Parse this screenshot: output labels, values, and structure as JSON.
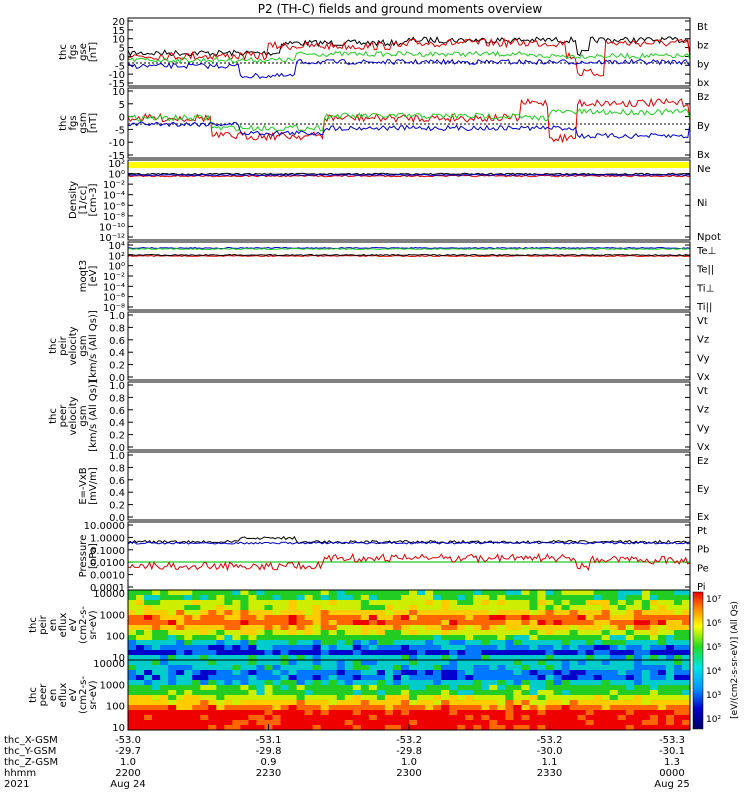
{
  "title": "P2 (TH-C) fields and ground moments overview",
  "colors": {
    "black": "#000000",
    "red": "#dd0000",
    "green": "#22cc22",
    "blue": "#0000cc",
    "yellow": "#ffff00"
  },
  "chart_data": [
    {
      "panel": "fgs-gse",
      "type": "line",
      "ylabel_lines": [
        "thc",
        "fgs",
        "gse",
        "[nT]"
      ],
      "yticks": [
        "20",
        "15",
        "10",
        "5",
        "0",
        "-5",
        "-10",
        "-15"
      ],
      "ylim": [
        -15,
        20
      ],
      "legend": [
        "Bt",
        "bz",
        "by",
        "bx"
      ],
      "legend_colors": [
        "#000000",
        "#dd0000",
        "#22cc22",
        "#0000cc"
      ]
    },
    {
      "panel": "fgs-gsm",
      "type": "line",
      "ylabel_lines": [
        "thc",
        "fgs",
        "gsm",
        "[nT]"
      ],
      "yticks": [
        "10",
        "5",
        "0",
        "-5",
        "-10",
        "-15"
      ],
      "ylim": [
        -17,
        12
      ],
      "legend": [
        "Bz",
        "By",
        "Bx"
      ],
      "legend_colors": [
        "#dd0000",
        "#22cc22",
        "#0000cc"
      ]
    },
    {
      "panel": "density",
      "type": "line",
      "ylabel_lines": [
        "Density",
        "[1/cc]",
        "[cm-3]"
      ],
      "yticks": [
        "10²",
        "10⁰",
        "10⁻²",
        "10⁻⁴",
        "10⁻⁶",
        "10⁻⁸",
        "10⁻¹⁰",
        "10⁻¹²"
      ],
      "legend": [
        "Ne",
        "Ni",
        "Npot"
      ],
      "legend_colors": [
        "#dd0000",
        "#000000",
        "#0000cc"
      ]
    },
    {
      "panel": "temperature",
      "type": "line",
      "ylabel_lines": [
        "moqt3",
        "[eV]"
      ],
      "yticks": [
        "10⁴",
        "10²",
        "10⁰",
        "10⁻²",
        "10⁻⁴",
        "10⁻⁶",
        "10⁻⁸"
      ],
      "legend": [
        "Te⊥",
        "Te||",
        "Ti⊥",
        "Ti||"
      ],
      "legend_colors": [
        "#dd0000",
        "#000000",
        "#0000cc",
        "#22cc22"
      ]
    },
    {
      "panel": "peir-velocity",
      "type": "line",
      "ylabel_lines": [
        "thc",
        "peir",
        "velocity",
        "gsm",
        "[km/s (All Qs)]"
      ],
      "yticks": [
        "1.0",
        "0.8",
        "0.6",
        "0.4",
        "0.2",
        "0.0"
      ],
      "ylim": [
        0,
        1
      ],
      "legend": [
        "Vt",
        "Vz",
        "Vy",
        "Vx"
      ],
      "legend_colors": [
        "#000000",
        "#dd0000",
        "#22cc22",
        "#0000cc"
      ]
    },
    {
      "panel": "peer-velocity",
      "type": "line",
      "ylabel_lines": [
        "thc",
        "peer",
        "velocity",
        "gsm",
        "[km/s (All Qs)]"
      ],
      "yticks": [
        "1.0",
        "0.8",
        "0.6",
        "0.4",
        "0.2",
        "0.0"
      ],
      "ylim": [
        0,
        1
      ],
      "legend": [
        "Vt",
        "Vz",
        "Vy",
        "Vx"
      ],
      "legend_colors": [
        "#000000",
        "#dd0000",
        "#22cc22",
        "#0000cc"
      ]
    },
    {
      "panel": "efield",
      "type": "line",
      "ylabel_lines": [
        "E=-VxB",
        "[mV/m]"
      ],
      "yticks": [
        "1.0",
        "0.8",
        "0.6",
        "0.4",
        "0.2",
        "0.0"
      ],
      "ylim": [
        0,
        1
      ],
      "legend": [
        "Ez",
        "Ey",
        "Ex"
      ],
      "legend_colors": [
        "#dd0000",
        "#22cc22",
        "#0000cc"
      ]
    },
    {
      "panel": "pressure",
      "type": "line",
      "ylabel_lines": [
        "Pressure",
        "[nPa]"
      ],
      "yticks": [
        "10.0000",
        "1.0000",
        "0.1000",
        "0.0100",
        "0.0010",
        "0.0001"
      ],
      "legend": [
        "Pt",
        "Pb",
        "Pe",
        "Pi"
      ],
      "legend_colors": [
        "#000000",
        "#dd0000",
        "#22cc22",
        "#0000cc"
      ]
    },
    {
      "panel": "peir-eflux",
      "type": "heatmap",
      "ylabel_lines": [
        "thc",
        "peir",
        "en",
        "eflux",
        "eV",
        "(cm2-s-",
        "sr-eV)"
      ],
      "yticks": [
        "10000",
        "1000",
        "100",
        "10"
      ]
    },
    {
      "panel": "peer-eflux",
      "type": "heatmap",
      "ylabel_lines": [
        "thc",
        "peer",
        "en",
        "eflux",
        "eV",
        "(cm2-s-",
        "sr-eV)"
      ],
      "yticks": [
        "10000",
        "1000",
        "100",
        "10"
      ]
    }
  ],
  "colorbar": {
    "ticks": [
      "10⁷",
      "10⁶",
      "10⁵",
      "10⁴",
      "10³",
      "10²"
    ],
    "label": "[eV/(cm2-s-sr-eV)] (All Qs)"
  },
  "xaxis": {
    "row_labels": [
      "thc_X-GSM",
      "thc_Y-GSM",
      "thc_Z-GSM",
      "hhmm",
      "2021"
    ],
    "columns": [
      [
        "-53.0",
        "-29.7",
        "1.0",
        "2200",
        "Aug 24"
      ],
      [
        "-53.1",
        "-29.8",
        "0.9",
        "2230",
        ""
      ],
      [
        "-53.2",
        "-29.8",
        "1.0",
        "2300",
        ""
      ],
      [
        "-53.2",
        "-30.0",
        "1.1",
        "2330",
        ""
      ],
      [
        "-53.3",
        "-30.1",
        "1.3",
        "0000",
        "Aug 25"
      ]
    ]
  }
}
